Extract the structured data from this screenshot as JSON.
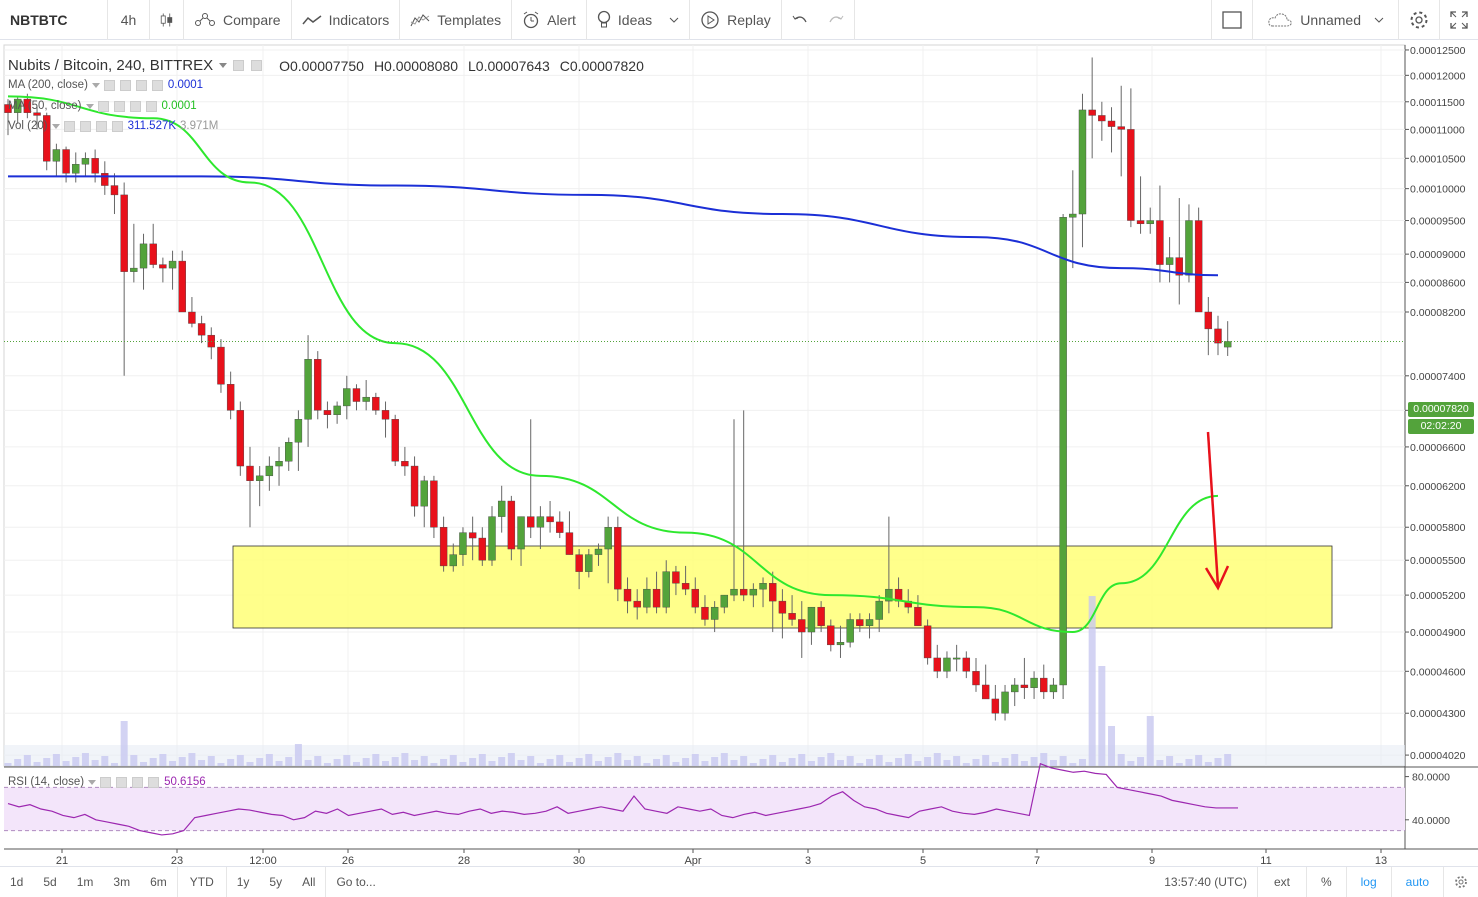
{
  "toolbar": {
    "symbol": "NBTBTC",
    "interval": "4h",
    "compare": "Compare",
    "indicators": "Indicators",
    "templates": "Templates",
    "alert": "Alert",
    "ideas": "Ideas",
    "replay": "Replay",
    "layout_name": "Unnamed"
  },
  "legend": {
    "title": "Nubits / Bitcoin, 240, BITTREX",
    "open": "O0.00007750",
    "high": "H0.00008080",
    "low": "L0.00007643",
    "close": "C0.00007820"
  },
  "indicators": {
    "ma200_label": "MA (200, close)",
    "ma200_value": "0.0001",
    "ma50_label": "MA (50, close)",
    "ma50_value": "0.0001",
    "vol_label": "Vol (20)",
    "vol_value": "311.527K",
    "vol_ma": "3.971M",
    "rsi_label": "RSI (14, close)",
    "rsi_value": "50.6156"
  },
  "colors": {
    "up": "#53a33b",
    "down": "#e8111b",
    "ma200": "#1b2fd6",
    "ma50": "#2ee82e",
    "zone": "#ffff77",
    "rsi": "#9c27b0",
    "price_tag": "#53a33b",
    "arrow": "#e8111b"
  },
  "price_axis": [
    "0.00012500",
    "0.00012000",
    "0.00011500",
    "0.00011000",
    "0.00010500",
    "0.00010000",
    "0.00009500",
    "0.00009000",
    "0.00008600",
    "0.00008200",
    "0.00007400",
    "0.00007000",
    "0.00006600",
    "0.00006200",
    "0.00005800",
    "0.00005500",
    "0.00005200",
    "0.00004900",
    "0.00004600",
    "0.00004300",
    "0.00004020"
  ],
  "price_tag": {
    "value": "0.00007820",
    "countdown": "02:02:20"
  },
  "rsi_axis": [
    "80.0000",
    "40.0000"
  ],
  "time_axis": [
    "21",
    "23",
    "12:00",
    "26",
    "28",
    "30",
    "Apr",
    "3",
    "5",
    "7",
    "9",
    "11",
    "13"
  ],
  "bottombar": {
    "ranges": [
      "1d",
      "5d",
      "1m",
      "3m",
      "6m",
      "YTD",
      "1y",
      "5y",
      "All"
    ],
    "goto": "Go to...",
    "clock": "13:57:40 (UTC)",
    "ext": "ext",
    "pct": "%",
    "log": "log",
    "auto": "auto"
  },
  "chart_data": {
    "type": "candlestick",
    "price_range": [
      3.95e-05,
      0.000126
    ],
    "candles_ohlc": [
      [
        0.0001145,
        0.0001155,
        0.000109,
        0.000113
      ],
      [
        0.000113,
        0.000116,
        0.000111,
        0.0001155
      ],
      [
        0.0001155,
        0.0001165,
        0.000112,
        0.000113
      ],
      [
        0.000113,
        0.000114,
        0.00011,
        0.0001125
      ],
      [
        0.0001125,
        0.000113,
        0.000103,
        0.0001045
      ],
      [
        0.0001045,
        0.0001075,
        0.000102,
        0.0001065
      ],
      [
        0.0001065,
        0.000107,
        0.000101,
        0.0001025
      ],
      [
        0.0001025,
        0.000106,
        0.000101,
        0.000104
      ],
      [
        0.000104,
        0.000106,
        0.000102,
        0.000105
      ],
      [
        0.000105,
        0.0001065,
        0.000101,
        0.0001025
      ],
      [
        0.0001025,
        0.0001045,
        9.9e-05,
        0.0001005
      ],
      [
        0.0001005,
        0.0001025,
        9.6e-05,
        9.9e-05
      ],
      [
        9.9e-05,
        0.000101,
        7.4e-05,
        8.75e-05
      ],
      [
        8.75e-05,
        9.45e-05,
        8.6e-05,
        8.8e-05
      ],
      [
        8.8e-05,
        9.3e-05,
        8.5e-05,
        9.15e-05
      ],
      [
        9.15e-05,
        9.45e-05,
        8.8e-05,
        8.85e-05
      ],
      [
        8.85e-05,
        8.95e-05,
        8.6e-05,
        8.8e-05
      ],
      [
        8.8e-05,
        9.05e-05,
        8.5e-05,
        8.9e-05
      ],
      [
        8.9e-05,
        9.05e-05,
        8.2e-05,
        8.2e-05
      ],
      [
        8.2e-05,
        8.4e-05,
        8e-05,
        8.05e-05
      ],
      [
        8.05e-05,
        8.15e-05,
        7.8e-05,
        7.9e-05
      ],
      [
        7.9e-05,
        8e-05,
        7.6e-05,
        7.75e-05
      ],
      [
        7.75e-05,
        7.85e-05,
        7.2e-05,
        7.3e-05
      ],
      [
        7.3e-05,
        7.45e-05,
        6.9e-05,
        7e-05
      ],
      [
        7e-05,
        7.1e-05,
        6.3e-05,
        6.4e-05
      ],
      [
        6.4e-05,
        6.6e-05,
        5.8e-05,
        6.25e-05
      ],
      [
        6.25e-05,
        6.4e-05,
        6e-05,
        6.3e-05
      ],
      [
        6.3e-05,
        6.5e-05,
        6.15e-05,
        6.4e-05
      ],
      [
        6.4e-05,
        6.6e-05,
        6.2e-05,
        6.45e-05
      ],
      [
        6.45e-05,
        6.7e-05,
        6.35e-05,
        6.65e-05
      ],
      [
        6.65e-05,
        7e-05,
        6.35e-05,
        6.9e-05
      ],
      [
        6.9e-05,
        7.9e-05,
        6.6e-05,
        7.6e-05
      ],
      [
        7.6e-05,
        7.7e-05,
        6.9e-05,
        7e-05
      ],
      [
        7e-05,
        7.1e-05,
        6.8e-05,
        6.95e-05
      ],
      [
        6.95e-05,
        7.1e-05,
        6.85e-05,
        7.05e-05
      ],
      [
        7.05e-05,
        7.4e-05,
        6.9e-05,
        7.25e-05
      ],
      [
        7.25e-05,
        7.3e-05,
        7e-05,
        7.1e-05
      ],
      [
        7.1e-05,
        7.35e-05,
        7e-05,
        7.15e-05
      ],
      [
        7.15e-05,
        7.2e-05,
        6.95e-05,
        7e-05
      ],
      [
        7e-05,
        7.1e-05,
        6.7e-05,
        6.9e-05
      ],
      [
        6.9e-05,
        6.95e-05,
        6.4e-05,
        6.45e-05
      ],
      [
        6.45e-05,
        6.6e-05,
        6.3e-05,
        6.4e-05
      ],
      [
        6.4e-05,
        6.5e-05,
        5.9e-05,
        6e-05
      ],
      [
        6e-05,
        6.3e-05,
        5.8e-05,
        6.25e-05
      ],
      [
        6.25e-05,
        6.3e-05,
        5.7e-05,
        5.8e-05
      ],
      [
        5.8e-05,
        5.9e-05,
        5.4e-05,
        5.45e-05
      ],
      [
        5.45e-05,
        5.65e-05,
        5.4e-05,
        5.55e-05
      ],
      [
        5.55e-05,
        5.8e-05,
        5.45e-05,
        5.75e-05
      ],
      [
        5.75e-05,
        5.9e-05,
        5.5e-05,
        5.7e-05
      ],
      [
        5.7e-05,
        5.8e-05,
        5.45e-05,
        5.5e-05
      ],
      [
        5.5e-05,
        6e-05,
        5.45e-05,
        5.9e-05
      ],
      [
        5.9e-05,
        6.2e-05,
        5.75e-05,
        6.05e-05
      ],
      [
        6.05e-05,
        6.1e-05,
        5.5e-05,
        5.6e-05
      ],
      [
        5.6e-05,
        5.9e-05,
        5.45e-05,
        5.9e-05
      ],
      [
        5.9e-05,
        6.9e-05,
        5.7e-05,
        5.8e-05
      ],
      [
        5.8e-05,
        6e-05,
        5.6e-05,
        5.9e-05
      ],
      [
        5.9e-05,
        6.05e-05,
        5.75e-05,
        5.85e-05
      ],
      [
        5.85e-05,
        5.95e-05,
        5.7e-05,
        5.75e-05
      ],
      [
        5.75e-05,
        5.95e-05,
        5.55e-05,
        5.55e-05
      ],
      [
        5.55e-05,
        5.6e-05,
        5.25e-05,
        5.4e-05
      ],
      [
        5.4e-05,
        5.6e-05,
        5.35e-05,
        5.55e-05
      ],
      [
        5.55e-05,
        5.65e-05,
        5.45e-05,
        5.6e-05
      ],
      [
        5.6e-05,
        5.9e-05,
        5.3e-05,
        5.8e-05
      ],
      [
        5.8e-05,
        5.9e-05,
        5.15e-05,
        5.25e-05
      ],
      [
        5.25e-05,
        5.35e-05,
        5.05e-05,
        5.15e-05
      ],
      [
        5.15e-05,
        5.25e-05,
        5e-05,
        5.1e-05
      ],
      [
        5.1e-05,
        5.35e-05,
        5.05e-05,
        5.25e-05
      ],
      [
        5.25e-05,
        5.4e-05,
        5.05e-05,
        5.1e-05
      ],
      [
        5.1e-05,
        5.5e-05,
        5.05e-05,
        5.4e-05
      ],
      [
        5.4e-05,
        5.45e-05,
        5.2e-05,
        5.3e-05
      ],
      [
        5.3e-05,
        5.45e-05,
        5.2e-05,
        5.25e-05
      ],
      [
        5.25e-05,
        5.35e-05,
        5.05e-05,
        5.1e-05
      ],
      [
        5.1e-05,
        5.2e-05,
        4.95e-05,
        5e-05
      ],
      [
        5e-05,
        5.15e-05,
        4.9e-05,
        5.1e-05
      ],
      [
        5.1e-05,
        5.2e-05,
        5.05e-05,
        5.2e-05
      ],
      [
        5.2e-05,
        6.9e-05,
        5.15e-05,
        5.25e-05
      ],
      [
        5.25e-05,
        7e-05,
        5.15e-05,
        5.2e-05
      ],
      [
        5.2e-05,
        5.3e-05,
        5.1e-05,
        5.25e-05
      ],
      [
        5.25e-05,
        5.35e-05,
        5.1e-05,
        5.3e-05
      ],
      [
        5.3e-05,
        5.4e-05,
        4.9e-05,
        5.15e-05
      ],
      [
        5.15e-05,
        5.25e-05,
        4.85e-05,
        5.05e-05
      ],
      [
        5.05e-05,
        5.2e-05,
        4.95e-05,
        5e-05
      ],
      [
        5e-05,
        5.15e-05,
        4.7e-05,
        4.9e-05
      ],
      [
        4.9e-05,
        5.1e-05,
        4.8e-05,
        5.1e-05
      ],
      [
        5.1e-05,
        5.15e-05,
        4.9e-05,
        4.95e-05
      ],
      [
        4.95e-05,
        5e-05,
        4.75e-05,
        4.8e-05
      ],
      [
        4.8e-05,
        4.95e-05,
        4.7e-05,
        4.82e-05
      ],
      [
        4.82e-05,
        5.05e-05,
        4.78e-05,
        5e-05
      ],
      [
        5e-05,
        5.05e-05,
        4.9e-05,
        4.95e-05
      ],
      [
        4.95e-05,
        5.05e-05,
        4.85e-05,
        5e-05
      ],
      [
        5e-05,
        5.2e-05,
        4.9e-05,
        5.15e-05
      ],
      [
        5.15e-05,
        5.9e-05,
        5.05e-05,
        5.25e-05
      ],
      [
        5.25e-05,
        5.35e-05,
        5.1e-05,
        5.15e-05
      ],
      [
        5.15e-05,
        5.25e-05,
        5.05e-05,
        5.1e-05
      ],
      [
        5.1e-05,
        5.2e-05,
        4.95e-05,
        4.95e-05
      ],
      [
        4.95e-05,
        5e-05,
        4.65e-05,
        4.7e-05
      ],
      [
        4.7e-05,
        4.8e-05,
        4.55e-05,
        4.6e-05
      ],
      [
        4.6e-05,
        4.75e-05,
        4.55e-05,
        4.7e-05
      ],
      [
        4.7e-05,
        4.8e-05,
        4.6e-05,
        4.7e-05
      ],
      [
        4.7e-05,
        4.75e-05,
        4.55e-05,
        4.6e-05
      ],
      [
        4.6e-05,
        4.7e-05,
        4.45e-05,
        4.5e-05
      ],
      [
        4.5e-05,
        4.65e-05,
        4.4e-05,
        4.4e-05
      ],
      [
        4.4e-05,
        4.5e-05,
        4.25e-05,
        4.3e-05
      ],
      [
        4.3e-05,
        4.5e-05,
        4.25e-05,
        4.45e-05
      ],
      [
        4.45e-05,
        4.55e-05,
        4.35e-05,
        4.5e-05
      ],
      [
        4.5e-05,
        4.7e-05,
        4.4e-05,
        4.48e-05
      ],
      [
        4.48e-05,
        4.6e-05,
        4.4e-05,
        4.55e-05
      ],
      [
        4.55e-05,
        4.65e-05,
        4.4e-05,
        4.45e-05
      ],
      [
        4.45e-05,
        4.55e-05,
        4.4e-05,
        4.5e-05
      ],
      [
        4.5e-05,
        9.6e-05,
        4.4e-05,
        9.55e-05
      ],
      [
        9.55e-05,
        0.000103,
        8.8e-05,
        9.6e-05
      ],
      [
        9.6e-05,
        0.0001165,
        9.1e-05,
        0.0001135
      ],
      [
        0.0001135,
        0.0001235,
        0.000105,
        0.0001125
      ],
      [
        0.0001125,
        0.000115,
        0.000108,
        0.0001115
      ],
      [
        0.0001115,
        0.000114,
        0.000106,
        0.0001105
      ],
      [
        0.0001105,
        0.000118,
        0.000102,
        0.00011
      ],
      [
        0.00011,
        0.0001175,
        9.4e-05,
        9.5e-05
      ],
      [
        9.5e-05,
        0.000102,
        9.3e-05,
        9.45e-05
      ],
      [
        9.45e-05,
        9.7e-05,
        9.3e-05,
        9.5e-05
      ],
      [
        9.5e-05,
        0.0001005,
        8.6e-05,
        8.85e-05
      ],
      [
        8.85e-05,
        9.25e-05,
        8.6e-05,
        8.95e-05
      ],
      [
        8.95e-05,
        9.85e-05,
        8.3e-05,
        8.7e-05
      ],
      [
        8.7e-05,
        9.75e-05,
        8.6e-05,
        9.5e-05
      ],
      [
        9.5e-05,
        9.7e-05,
        8.2e-05,
        8.2e-05
      ],
      [
        8.2e-05,
        8.4e-05,
        7.65e-05,
        7.98e-05
      ],
      [
        7.98e-05,
        8.15e-05,
        7.65e-05,
        7.8e-05
      ],
      [
        7.75e-05,
        8.08e-05,
        7.64e-05,
        7.82e-05
      ]
    ],
    "ma200": [
      [
        0,
        0.000102
      ],
      [
        20,
        0.000102
      ],
      [
        40,
        0.0001005
      ],
      [
        60,
        9.9e-05
      ],
      [
        80,
        9.6e-05
      ],
      [
        100,
        9.25e-05
      ],
      [
        115,
        8.8e-05
      ],
      [
        125,
        8.7e-05
      ]
    ],
    "ma50": [
      [
        0,
        0.000116
      ],
      [
        15,
        0.000112
      ],
      [
        25,
        0.000101
      ],
      [
        40,
        7.8e-05
      ],
      [
        55,
        6.3e-05
      ],
      [
        70,
        5.75e-05
      ],
      [
        85,
        5.2e-05
      ],
      [
        100,
        5.1e-05
      ],
      [
        110,
        4.9e-05
      ],
      [
        115,
        5.3e-05
      ],
      [
        125,
        6.1e-05
      ]
    ],
    "rsi": [
      55,
      52,
      54,
      50,
      48,
      44,
      42,
      45,
      40,
      38,
      36,
      34,
      30,
      28,
      26,
      27,
      30,
      42,
      44,
      46,
      48,
      50,
      49,
      47,
      45,
      44,
      40,
      42,
      48,
      46,
      50,
      44,
      46,
      48,
      50,
      45,
      47,
      44,
      46,
      48,
      46,
      45,
      48,
      50,
      46,
      48,
      47,
      45,
      46,
      48,
      52,
      46,
      48,
      50,
      52,
      50,
      48,
      62,
      50,
      48,
      46,
      52,
      50,
      48,
      50,
      44,
      42,
      45,
      47,
      44,
      46,
      48,
      50,
      52,
      55,
      62,
      66,
      58,
      52,
      50,
      46,
      44,
      42,
      48,
      50,
      52,
      48,
      46,
      45,
      47,
      50,
      48,
      46,
      44,
      92,
      88,
      86,
      84,
      85,
      83,
      82,
      70,
      68,
      66,
      64,
      62,
      58,
      56,
      54,
      52,
      51,
      51,
      51
    ],
    "rsi_range": [
      0,
      100
    ],
    "rsi_bands": [
      70,
      30
    ]
  }
}
